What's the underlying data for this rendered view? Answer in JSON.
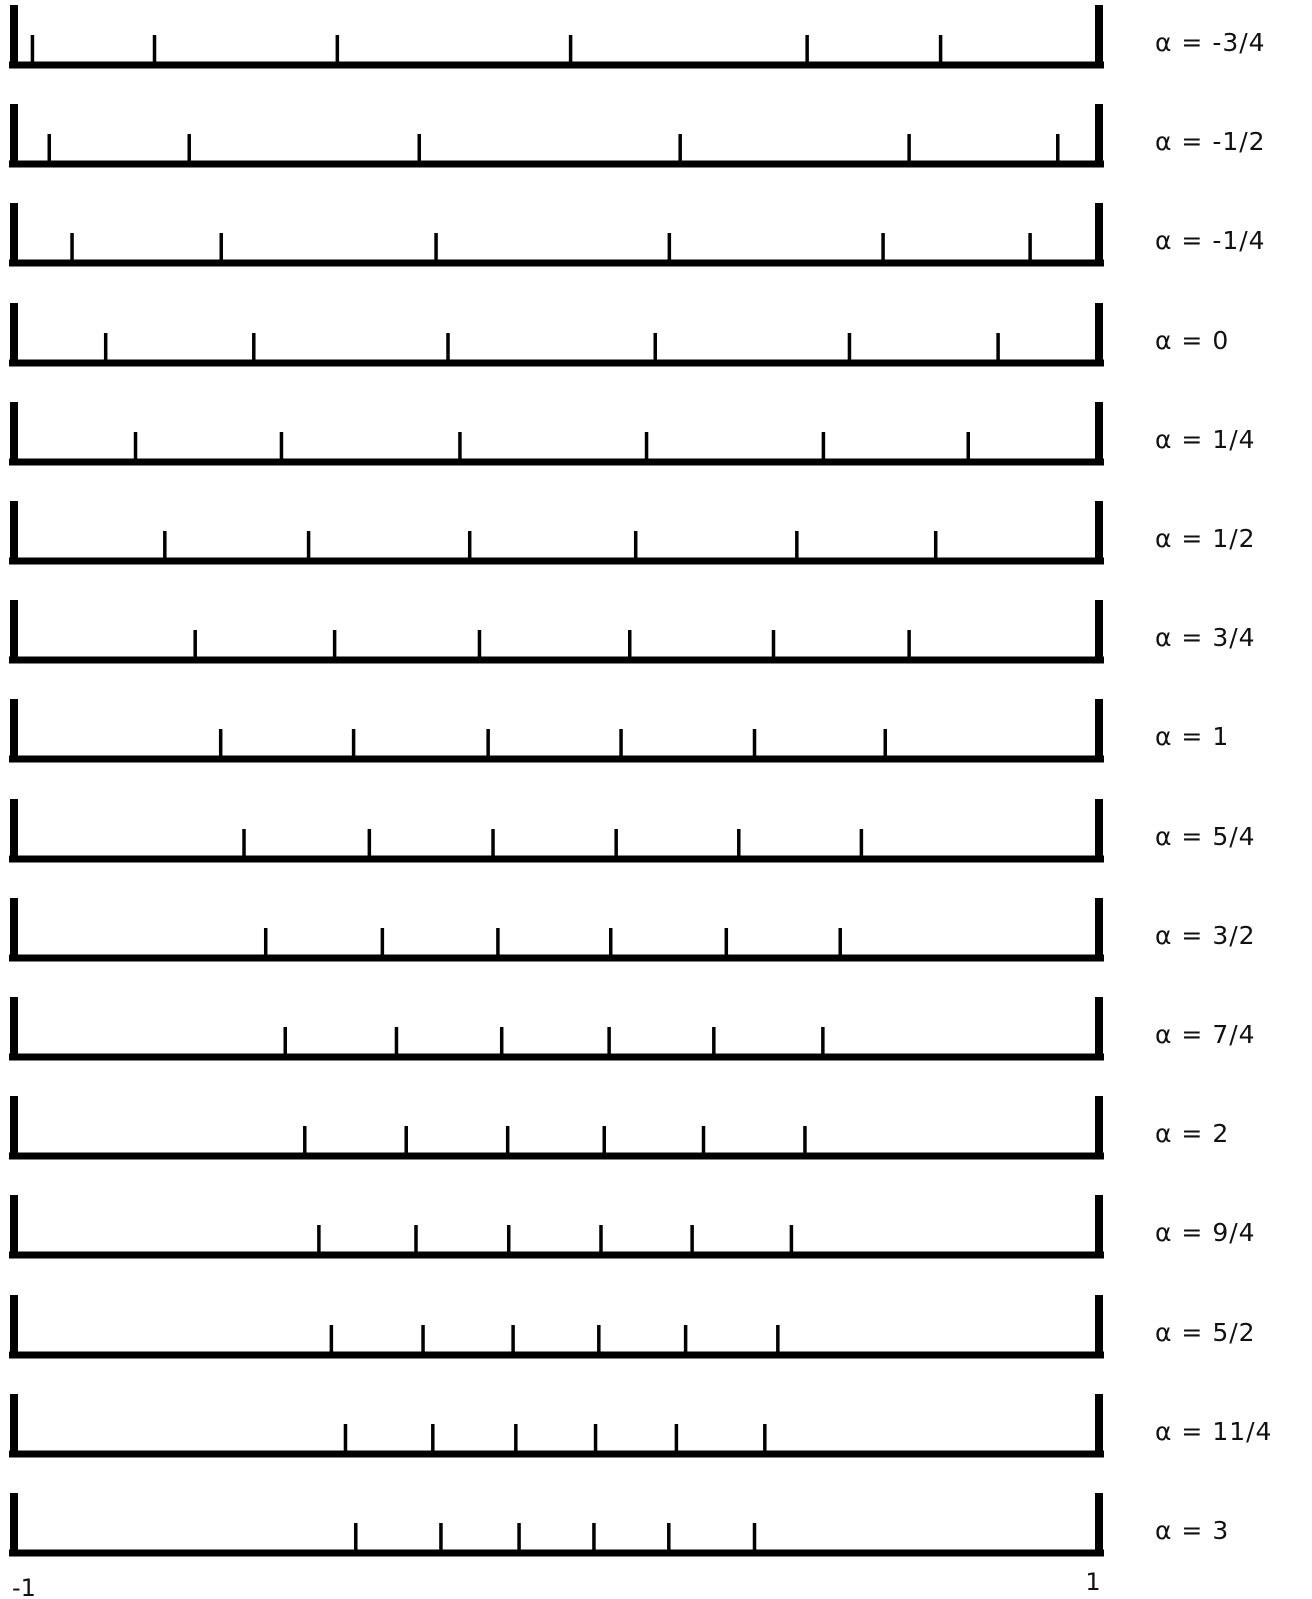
{
  "chart_data": {
    "type": "scatter",
    "title": "",
    "xlabel": "",
    "ylabel": "",
    "xlim": [
      -1,
      1
    ],
    "x_tick_labels": [
      "-1",
      "1"
    ],
    "grid": false,
    "legend": "none",
    "line_color": "#000000",
    "rows": [
      {
        "label": "α = -3/4",
        "x": [
          -0.966,
          -0.741,
          -0.404,
          0.026,
          0.462,
          0.708
        ]
      },
      {
        "label": "α = -1/2",
        "x": [
          -0.935,
          -0.677,
          -0.253,
          0.228,
          0.65,
          0.924
        ]
      },
      {
        "label": "α = -1/4",
        "x": [
          -0.893,
          -0.618,
          -0.222,
          0.208,
          0.602,
          0.873
        ]
      },
      {
        "label": "α = 0",
        "x": [
          -0.831,
          -0.558,
          -0.2,
          0.182,
          0.54,
          0.814
        ]
      },
      {
        "label": "α = 1/4",
        "x": [
          -0.776,
          -0.507,
          -0.178,
          0.166,
          0.492,
          0.759
        ]
      },
      {
        "label": "α = 1/2",
        "x": [
          -0.722,
          -0.457,
          -0.16,
          0.146,
          0.443,
          0.699
        ]
      },
      {
        "label": "α = 3/4",
        "x": [
          -0.666,
          -0.409,
          -0.142,
          0.135,
          0.4,
          0.65
        ]
      },
      {
        "label": "α = 1",
        "x": [
          -0.619,
          -0.374,
          -0.126,
          0.119,
          0.365,
          0.606
        ]
      },
      {
        "label": "α = 5/4",
        "x": [
          -0.576,
          -0.345,
          -0.117,
          0.11,
          0.336,
          0.562
        ]
      },
      {
        "label": "α = 3/2",
        "x": [
          -0.536,
          -0.321,
          -0.108,
          0.1,
          0.313,
          0.523
        ]
      },
      {
        "label": "α = 7/4",
        "x": [
          -0.5,
          -0.295,
          -0.101,
          0.097,
          0.29,
          0.491
        ]
      },
      {
        "label": "α = 2",
        "x": [
          -0.464,
          -0.277,
          -0.09,
          0.088,
          0.271,
          0.458
        ]
      },
      {
        "label": "α = 9/4",
        "x": [
          -0.438,
          -0.259,
          -0.088,
          0.082,
          0.25,
          0.433
        ]
      },
      {
        "label": "α = 5/2",
        "x": [
          -0.415,
          -0.246,
          -0.08,
          0.078,
          0.238,
          0.408
        ]
      },
      {
        "label": "α = 11/4",
        "x": [
          -0.389,
          -0.228,
          -0.075,
          0.072,
          0.221,
          0.384
        ]
      },
      {
        "label": "α = 3",
        "x": [
          -0.37,
          -0.213,
          -0.069,
          0.069,
          0.207,
          0.365
        ]
      }
    ]
  }
}
